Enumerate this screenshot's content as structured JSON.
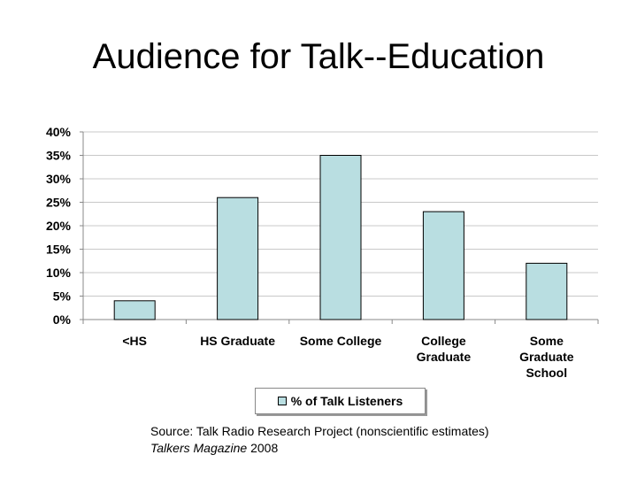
{
  "slide": {
    "title": "Audience for Talk--Education",
    "source_line1": "Source: Talk Radio Research Project (nonscientific estimates)",
    "source_magazine": "Talkers Magazine",
    "source_year": " 2008"
  },
  "chart_data": {
    "type": "bar",
    "categories": [
      [
        "<HS"
      ],
      [
        "HS Graduate"
      ],
      [
        "Some College"
      ],
      [
        "College",
        "Graduate"
      ],
      [
        "Some",
        "Graduate",
        "School"
      ]
    ],
    "series": [
      {
        "name": "% of Talk Listeners",
        "values": [
          4,
          26,
          35,
          23,
          12
        ]
      }
    ],
    "ylim": [
      0,
      40
    ],
    "yticks": [
      "0%",
      "5%",
      "10%",
      "15%",
      "20%",
      "25%",
      "30%",
      "35%",
      "40%"
    ],
    "grid": true,
    "legend_position": "bottom",
    "bar_color": "#b9dee1",
    "bar_border_color": "#000000",
    "grid_color": "#c8c8c8"
  }
}
